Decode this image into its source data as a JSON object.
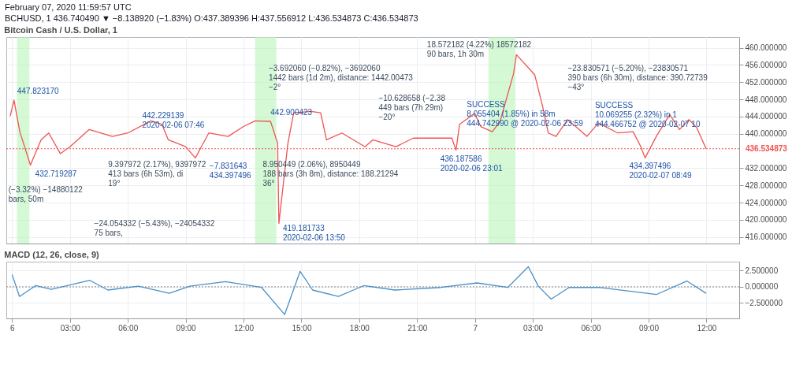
{
  "chart_data": [
    {
      "type": "line",
      "title": "Bitcoin Cash / U.S. Dollar, 1",
      "x": [
        "2020-02-05T23:54",
        "2020-02-06T00:06",
        "2020-02-06T00:24",
        "2020-02-06T00:57",
        "2020-02-06T01:30",
        "2020-02-06T01:54",
        "2020-02-06T02:30",
        "2020-02-06T03:00",
        "2020-02-06T04:00",
        "2020-02-06T05:12",
        "2020-02-06T06:00",
        "2020-02-06T07:12",
        "2020-02-06T07:46",
        "2020-02-06T08:06",
        "2020-02-06T09:00",
        "2020-02-06T09:30",
        "2020-02-06T10:12",
        "2020-02-06T11:12",
        "2020-02-06T12:00",
        "2020-02-06T12:36",
        "2020-02-06T13:24",
        "2020-02-06T13:46",
        "2020-02-06T13:50",
        "2020-02-06T14:18",
        "2020-02-06T14:36",
        "2020-02-06T15:30",
        "2020-02-06T16:00",
        "2020-02-06T16:18",
        "2020-02-06T17:06",
        "2020-02-06T18:18",
        "2020-02-06T18:42",
        "2020-02-06T19:54",
        "2020-02-06T20:48",
        "2020-02-06T22:48",
        "2020-02-06T23:01",
        "2020-02-06T23:12",
        "2020-02-06T23:59",
        "2020-02-07T00:18",
        "2020-02-07T00:54",
        "2020-02-07T01:18",
        "2020-02-07T02:00",
        "2020-02-07T02:09",
        "2020-02-07T03:06",
        "2020-02-07T03:30",
        "2020-02-07T03:48",
        "2020-02-07T04:12",
        "2020-02-07T04:48",
        "2020-02-07T05:24",
        "2020-02-07T05:48",
        "2020-02-07T06:24",
        "2020-02-07T07:24",
        "2020-02-07T08:12",
        "2020-02-07T08:36",
        "2020-02-07T08:49",
        "2020-02-07T09:24",
        "2020-02-07T10:06",
        "2020-02-07T10:36",
        "2020-02-07T11:06",
        "2020-02-07T11:30",
        "2020-02-07T11:59"
      ],
      "series": [
        {
          "color": "#ef5350",
          "values": [
            444.1,
            447.82317,
            440.5,
            432.719287,
            438.6,
            440.2,
            435.4,
            437,
            441,
            439.4,
            440.2,
            443,
            442.229139,
            438.6,
            437,
            434.397496,
            440.2,
            439.4,
            441.7,
            443,
            442.900423,
            437.8,
            419.181733,
            437.8,
            444.9,
            445.2,
            444.9,
            438.6,
            440.2,
            437,
            438.6,
            437,
            439,
            439,
            436.187586,
            442.2,
            444.74299,
            441.7,
            440.5,
            442.9,
            454,
            458.4,
            453.7,
            446.5,
            440.2,
            439.4,
            443.3,
            441,
            439.4,
            442.5,
            440.2,
            440.5,
            437,
            434.397496,
            439.4,
            444.466752,
            441,
            443.3,
            441.4,
            436.534873
          ]
        }
      ],
      "xlim": [
        "2020-02-05T23:42",
        "2020-02-07T13:42"
      ],
      "ylim": [
        414.5,
        462.5
      ],
      "xticks": [
        {
          "value": "2020-02-06T00:00",
          "label": null
        },
        {
          "value": "2020-02-06T03:00",
          "label": null
        },
        {
          "value": "2020-02-06T06:00",
          "label": null
        },
        {
          "value": "2020-02-06T09:00",
          "label": null
        },
        {
          "value": "2020-02-06T12:00",
          "label": null
        },
        {
          "value": "2020-02-06T15:00",
          "label": null
        },
        {
          "value": "2020-02-06T18:00",
          "label": null
        },
        {
          "value": "2020-02-06T21:00",
          "label": null
        },
        {
          "value": "2020-02-07T00:00",
          "label": null
        },
        {
          "value": "2020-02-07T03:00",
          "label": null
        },
        {
          "value": "2020-02-07T06:00",
          "label": null
        },
        {
          "value": "2020-02-07T09:00",
          "label": null
        },
        {
          "value": "2020-02-07T12:00",
          "label": null
        }
      ],
      "yticks": [
        {
          "value": 416,
          "label": "416.000000"
        },
        {
          "value": 420,
          "label": "420.000000"
        },
        {
          "value": 424,
          "label": "424.000000"
        },
        {
          "value": 428,
          "label": "428.000000"
        },
        {
          "value": 432,
          "label": "432.000000"
        },
        {
          "value": 440,
          "label": "440.000000"
        },
        {
          "value": 444,
          "label": "444.000000"
        },
        {
          "value": 448,
          "label": "448.000000"
        },
        {
          "value": 452,
          "label": "452.000000"
        },
        {
          "value": 456,
          "label": "456.000000"
        },
        {
          "value": 460,
          "label": "460.000000"
        }
      ],
      "grid": true,
      "tick_labels": "y",
      "ref_lines": [
        {
          "axis": "y",
          "value": 436.534873,
          "label": "436.534873",
          "color": "#ef5350",
          "line_style": "dotted"
        }
      ],
      "bands": [
        {
          "axis": "x",
          "from": "2020-02-06T00:15",
          "to": "2020-02-06T00:54",
          "color": "#b9f5b9"
        },
        {
          "axis": "x",
          "from": "2020-02-06T12:36",
          "to": "2020-02-06T13:42",
          "color": "#b9f5b9"
        },
        {
          "axis": "x",
          "from": "2020-02-07T00:42",
          "to": "2020-02-07T02:06",
          "color": "#b9f5b9"
        }
      ],
      "annotations": [
        "February 07, 2020 11:59:57 UTC",
        "BCHUSD, 1 436.740490 ▼ −8.138920 (−1.83%) O:437.389396 H:437.556912 L:436.534873 C:436.534873",
        {
          "text": "447.823170",
          "x": "2020-02-06T00:06",
          "y": 447.82317
        },
        {
          "text": "432.719287",
          "x": "2020-02-06T00:57",
          "y": 432.719287
        },
        "(−3.32%) −14880122\nbars, 50m",
        {
          "text": "442.229139\n2020-02-06 07:46",
          "x": "2020-02-06T07:46",
          "y": 442.229139
        },
        "9.397972 (2.17%), 9397972\n413 bars (6h 53m), di\n19°",
        {
          "text": "−7.831643\n434.397496",
          "x": "2020-02-06T09:30",
          "y": 434.397496
        },
        {
          "text": "442.900423",
          "x": "2020-02-06T13:24",
          "y": 442.900423
        },
        "8.950449 (2.06%), 8950449\n188 bars (3h 8m), distance: 188.21294\n36°",
        "−24.054332 (−5.43%), −24054332\n75 bars,",
        {
          "text": "419.181733\n2020-02-06 13:50",
          "x": "2020-02-06T13:50",
          "y": 419.181733
        },
        "−3.692060 (−0.82%), −3692060\n1442 bars (1d 2m), distance: 1442.00473\n−2°",
        "−10.628658 (−2.38\n449 bars (7h 29m)\n−20°",
        "18.572182 (4.22%) 18572182\n90 bars, 1h 30m",
        {
          "text": "SUCCESS\n8.055404 (1.85%) in 58m\n444.742990 @ 2020-02-06 23:59",
          "x": "2020-02-06T23:59",
          "y": 444.74299
        },
        {
          "text": "436.187586\n2020-02-06 23:01",
          "x": "2020-02-06T23:01",
          "y": 436.187586
        },
        "−23.830571 (−5.20%), −23830571\n390 bars (6h 30m), distance: 390.72739\n−43°",
        {
          "text": "SUCCESS\n10.069255 (2.32%) in 1\n444.466752 @ 2020-02-07 10",
          "x": "2020-02-07T10:06",
          "y": 444.466752
        },
        {
          "text": "434.397496\n2020-02-07 08:49",
          "x": "2020-02-07T08:49",
          "y": 434.397496
        }
      ]
    },
    {
      "type": "line",
      "title": "MACD (12, 26, close, 9)",
      "x": [
        "2020-02-06T00:00",
        "2020-02-06T00:23",
        "2020-02-06T01:14",
        "2020-02-06T02:02",
        "2020-02-06T04:02",
        "2020-02-06T04:58",
        "2020-02-06T06:33",
        "2020-02-06T08:09",
        "2020-02-06T09:13",
        "2020-02-06T11:04",
        "2020-02-06T12:56",
        "2020-02-06T14:08",
        "2020-02-06T14:56",
        "2020-02-06T15:35",
        "2020-02-06T16:55",
        "2020-02-06T18:15",
        "2020-02-06T19:50",
        "2020-02-06T22:14",
        "2020-02-07T00:06",
        "2020-02-07T01:42",
        "2020-02-07T02:46",
        "2020-02-07T03:17",
        "2020-02-07T03:57",
        "2020-02-07T04:53",
        "2020-02-07T06:28",
        "2020-02-07T09:24",
        "2020-02-07T10:59",
        "2020-02-07T11:59"
      ],
      "series": [
        {
          "color": "#4a90c8",
          "values": [
            1.9,
            -1.5,
            0.2,
            -0.4,
            1.0,
            -0.5,
            0.1,
            -1.0,
            0.1,
            0.8,
            -0.1,
            -4.3,
            2.4,
            -0.5,
            -1.5,
            0.2,
            -0.5,
            -0.1,
            0.6,
            -0.1,
            3.1,
            0.1,
            -1.9,
            -0.1,
            -0.1,
            -1.2,
            0.9,
            -1.0
          ]
        }
      ],
      "xlim": [
        "2020-02-05T23:42",
        "2020-02-07T13:42"
      ],
      "ylim": [
        -4.9,
        3.9
      ],
      "xticks": [
        {
          "value": "2020-02-06T00:00",
          "label": "6"
        },
        {
          "value": "2020-02-06T03:00",
          "label": "03:00"
        },
        {
          "value": "2020-02-06T06:00",
          "label": "06:00"
        },
        {
          "value": "2020-02-06T09:00",
          "label": "09:00"
        },
        {
          "value": "2020-02-06T12:00",
          "label": "12:00"
        },
        {
          "value": "2020-02-06T15:00",
          "label": "15:00"
        },
        {
          "value": "2020-02-06T18:00",
          "label": "18:00"
        },
        {
          "value": "2020-02-06T21:00",
          "label": "21:00"
        },
        {
          "value": "2020-02-07T00:00",
          "label": "7"
        },
        {
          "value": "2020-02-07T03:00",
          "label": "03:00"
        },
        {
          "value": "2020-02-07T06:00",
          "label": "06:00"
        },
        {
          "value": "2020-02-07T09:00",
          "label": "09:00"
        },
        {
          "value": "2020-02-07T12:00",
          "label": "12:00"
        }
      ],
      "yticks": [
        {
          "value": -2.5,
          "label": "−2.500000"
        },
        {
          "value": 0,
          "label": "0.000000"
        },
        {
          "value": 2.5,
          "label": "2.500000"
        }
      ],
      "grid": true,
      "ref_lines": [
        {
          "axis": "y",
          "value": 0,
          "color": "#888888",
          "line_style": "dotted"
        }
      ]
    }
  ]
}
